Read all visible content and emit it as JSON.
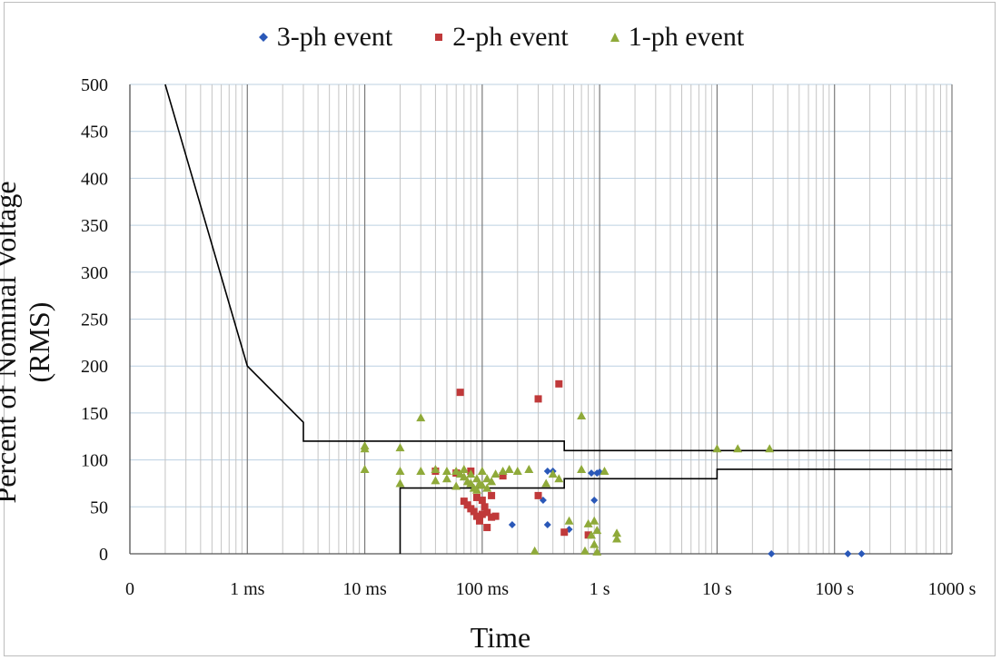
{
  "chart_data": {
    "type": "scatter",
    "xlabel": "Time",
    "ylabel": "Percent of Nominal Voltage (RMS)",
    "x_scale": "log",
    "x_unit": "s",
    "xlim": [
      0.0001,
      1000
    ],
    "ylim": [
      0,
      500
    ],
    "grid": true,
    "legend_placement": "top",
    "x_ticks": [
      {
        "value": 0.0001,
        "label": "0"
      },
      {
        "value": 0.001,
        "label": "1 ms"
      },
      {
        "value": 0.01,
        "label": "10 ms"
      },
      {
        "value": 0.1,
        "label": "100 ms"
      },
      {
        "value": 1,
        "label": "1 s"
      },
      {
        "value": 10,
        "label": "10 s"
      },
      {
        "value": 100,
        "label": "100 s"
      },
      {
        "value": 1000,
        "label": "1000 s"
      }
    ],
    "y_ticks": [
      0,
      50,
      100,
      150,
      200,
      250,
      300,
      350,
      400,
      450,
      500
    ],
    "curves": [
      {
        "name": "",
        "color": "#000000",
        "points": [
          [
            0.0002,
            500
          ],
          [
            0.001,
            200
          ],
          [
            0.003,
            140
          ],
          [
            0.003,
            120
          ],
          [
            0.5,
            120
          ],
          [
            0.5,
            110
          ],
          [
            1000,
            110
          ]
        ]
      },
      {
        "name": "",
        "color": "#000000",
        "points": [
          [
            0.02,
            0
          ],
          [
            0.02,
            70
          ],
          [
            0.5,
            70
          ],
          [
            0.5,
            80
          ],
          [
            10,
            80
          ],
          [
            10,
            90
          ],
          [
            1000,
            90
          ]
        ]
      }
    ],
    "series": [
      {
        "name": "3-ph event",
        "color": "#2a58b8",
        "marker": "diamond",
        "points": [
          [
            0.18,
            31
          ],
          [
            0.33,
            57
          ],
          [
            0.36,
            88
          ],
          [
            0.4,
            88
          ],
          [
            0.36,
            31
          ],
          [
            0.55,
            26
          ],
          [
            0.85,
            86
          ],
          [
            0.95,
            86
          ],
          [
            0.9,
            57
          ],
          [
            1.0,
            87
          ],
          [
            29,
            0
          ],
          [
            130,
            0
          ],
          [
            170,
            0
          ]
        ]
      },
      {
        "name": "2-ph event",
        "color": "#c0393a",
        "marker": "square",
        "points": [
          [
            0.065,
            172
          ],
          [
            0.3,
            165
          ],
          [
            0.45,
            181
          ],
          [
            0.04,
            88
          ],
          [
            0.06,
            86
          ],
          [
            0.07,
            56
          ],
          [
            0.075,
            52
          ],
          [
            0.08,
            48
          ],
          [
            0.085,
            45
          ],
          [
            0.09,
            40
          ],
          [
            0.09,
            60
          ],
          [
            0.095,
            35
          ],
          [
            0.1,
            42
          ],
          [
            0.1,
            57
          ],
          [
            0.105,
            50
          ],
          [
            0.11,
            28
          ],
          [
            0.11,
            44
          ],
          [
            0.12,
            62
          ],
          [
            0.12,
            39
          ],
          [
            0.13,
            40
          ],
          [
            0.15,
            83
          ],
          [
            0.3,
            62
          ],
          [
            0.5,
            23
          ],
          [
            0.8,
            20
          ],
          [
            0.08,
            88
          ]
        ]
      },
      {
        "name": "1-ph event",
        "color": "#8faa3a",
        "marker": "triangle",
        "points": [
          [
            0.01,
            115
          ],
          [
            0.01,
            112
          ],
          [
            0.01,
            90
          ],
          [
            0.02,
            113
          ],
          [
            0.02,
            88
          ],
          [
            0.02,
            75
          ],
          [
            0.03,
            145
          ],
          [
            0.03,
            88
          ],
          [
            0.04,
            90
          ],
          [
            0.04,
            78
          ],
          [
            0.05,
            88
          ],
          [
            0.05,
            80
          ],
          [
            0.06,
            88
          ],
          [
            0.06,
            72
          ],
          [
            0.065,
            85
          ],
          [
            0.07,
            90
          ],
          [
            0.07,
            82
          ],
          [
            0.075,
            77
          ],
          [
            0.08,
            85
          ],
          [
            0.08,
            75
          ],
          [
            0.085,
            70
          ],
          [
            0.09,
            80
          ],
          [
            0.09,
            68
          ],
          [
            0.095,
            75
          ],
          [
            0.1,
            88
          ],
          [
            0.1,
            73
          ],
          [
            0.11,
            80
          ],
          [
            0.11,
            70
          ],
          [
            0.12,
            77
          ],
          [
            0.13,
            85
          ],
          [
            0.15,
            88
          ],
          [
            0.17,
            90
          ],
          [
            0.2,
            88
          ],
          [
            0.25,
            90
          ],
          [
            0.28,
            3
          ],
          [
            0.35,
            75
          ],
          [
            0.4,
            85
          ],
          [
            0.45,
            80
          ],
          [
            0.55,
            35
          ],
          [
            0.7,
            90
          ],
          [
            0.7,
            147
          ],
          [
            0.75,
            3
          ],
          [
            0.8,
            32
          ],
          [
            0.85,
            20
          ],
          [
            0.9,
            35
          ],
          [
            0.9,
            10
          ],
          [
            0.95,
            25
          ],
          [
            0.95,
            2
          ],
          [
            1.1,
            88
          ],
          [
            1.4,
            22
          ],
          [
            1.4,
            16
          ],
          [
            10,
            112
          ],
          [
            15,
            112
          ],
          [
            28,
            112
          ]
        ]
      }
    ]
  }
}
